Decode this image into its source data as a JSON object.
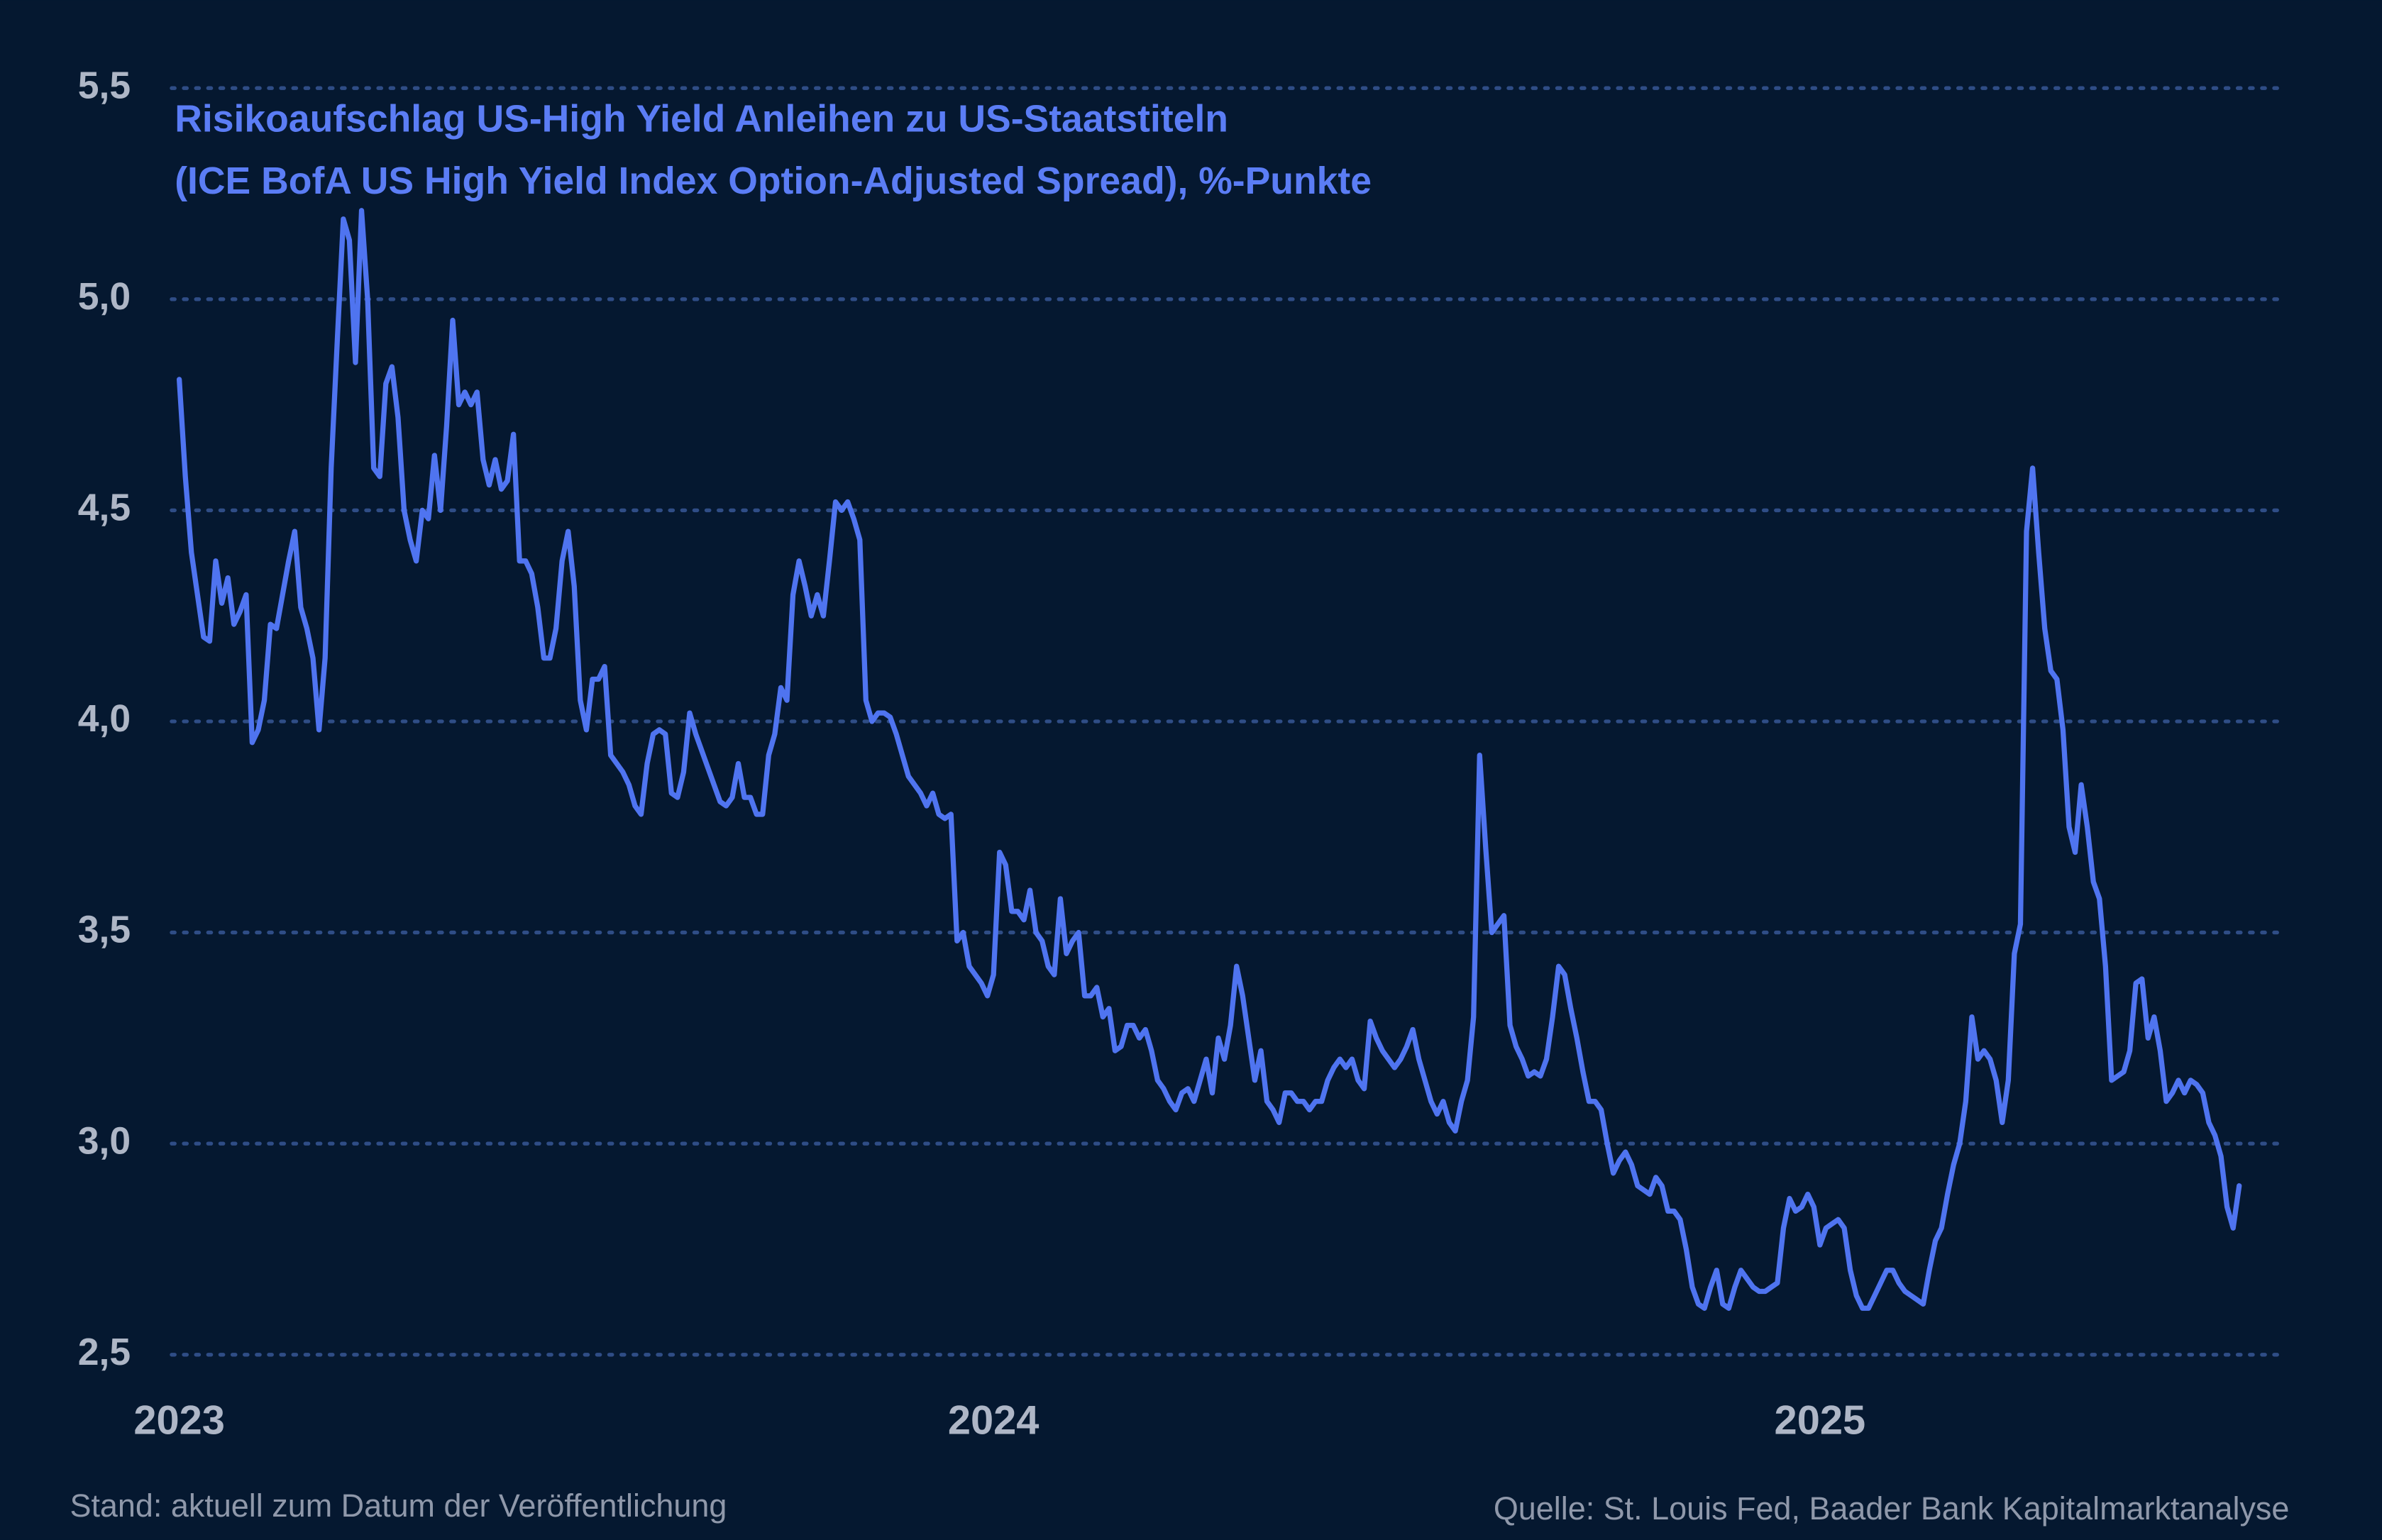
{
  "chart_data": {
    "type": "line",
    "title": "Risikoaufschlag US-High Yield Anleihen zu US-Staatstiteln",
    "subtitle": "(ICE BofA US High Yield Index Option-Adjusted Spread), %-Punkte",
    "note": "Stand: aktuell zum Datum der Veröffentlichung",
    "source": "Quelle: St. Louis Fed, Baader Bank Kapitalmarktanalyse",
    "color": "#4f74f0",
    "grid": true,
    "ylim": [
      2.5,
      5.5
    ],
    "yticks": [
      {
        "value": 2.5,
        "label": "2,5"
      },
      {
        "value": 3.0,
        "label": "3,0"
      },
      {
        "value": 3.5,
        "label": "3,5"
      },
      {
        "value": 4.0,
        "label": "4,0"
      },
      {
        "value": 4.5,
        "label": "4,5"
      },
      {
        "value": 5.0,
        "label": "5,0"
      },
      {
        "value": 5.5,
        "label": "5,5"
      }
    ],
    "categories": [
      "2023",
      null,
      null,
      null,
      null,
      null,
      null,
      null,
      null,
      null,
      null,
      null,
      null,
      null,
      null,
      null,
      null,
      null,
      null,
      null,
      null,
      null,
      null,
      null,
      null,
      null,
      null,
      null,
      null,
      null,
      null,
      null,
      null,
      null,
      null,
      null,
      null,
      null,
      null,
      null,
      null,
      null,
      null,
      null,
      null,
      null,
      null,
      null,
      null,
      null,
      null,
      null,
      null,
      null,
      null,
      null,
      null,
      null,
      null,
      null,
      null,
      null,
      null,
      null,
      null,
      null,
      null,
      null,
      null,
      null,
      null,
      null,
      null,
      null,
      null,
      null,
      null,
      null,
      null,
      null,
      null,
      null,
      null,
      null,
      null,
      null,
      null,
      null,
      null,
      null,
      null,
      null,
      null,
      null,
      null,
      null,
      null,
      null,
      null,
      null,
      null,
      null,
      null,
      null,
      null,
      null,
      null,
      null,
      null,
      null,
      null,
      null,
      null,
      null,
      null,
      null,
      null,
      null,
      null,
      null,
      null,
      null,
      null,
      null,
      null,
      null,
      null,
      null,
      null,
      null,
      null,
      null,
      null,
      null,
      "2024",
      null,
      null,
      null,
      null,
      null,
      null,
      null,
      null,
      null,
      null,
      null,
      null,
      null,
      null,
      null,
      null,
      null,
      null,
      null,
      null,
      null,
      null,
      null,
      null,
      null,
      null,
      null,
      null,
      null,
      null,
      null,
      null,
      null,
      null,
      null,
      null,
      null,
      null,
      null,
      null,
      null,
      null,
      null,
      null,
      null,
      null,
      null,
      null,
      null,
      null,
      null,
      null,
      null,
      null,
      null,
      null,
      null,
      null,
      null,
      null,
      null,
      null,
      null,
      null,
      null,
      null,
      null,
      null,
      null,
      null,
      null,
      null,
      null,
      null,
      null,
      null,
      null,
      null,
      null,
      null,
      null,
      null,
      null,
      null,
      null,
      null,
      null,
      null,
      null,
      null,
      null,
      null,
      null,
      null,
      null,
      null,
      null,
      null,
      null,
      null,
      null,
      null,
      null,
      null,
      null,
      null,
      null,
      null,
      null,
      null,
      null,
      null,
      null,
      null,
      null,
      null,
      null,
      null,
      null,
      null,
      null,
      null,
      null,
      null,
      null,
      null,
      null,
      null,
      null,
      null,
      null,
      null,
      null,
      null,
      null,
      "2025",
      null,
      null,
      null,
      null,
      null,
      null,
      null,
      null,
      null,
      null,
      null,
      null,
      null,
      null,
      null,
      null,
      null,
      null,
      null,
      null,
      null,
      null,
      null,
      null,
      null,
      null,
      null,
      null,
      null,
      null,
      null,
      null,
      null,
      null,
      null,
      null,
      null,
      null,
      null,
      null,
      null,
      null,
      null,
      null,
      null,
      null,
      null,
      null,
      null,
      null,
      null,
      null,
      null,
      null,
      null,
      null,
      null,
      null,
      null,
      null,
      null,
      null,
      null,
      null,
      null,
      null,
      null,
      null,
      null
    ],
    "values": [
      4.81,
      4.58,
      4.4,
      4.3,
      4.2,
      4.19,
      4.38,
      4.28,
      4.34,
      4.23,
      4.26,
      4.3,
      3.95,
      3.98,
      4.05,
      4.23,
      4.22,
      4.3,
      4.38,
      4.45,
      4.27,
      4.22,
      4.15,
      3.98,
      4.15,
      4.6,
      4.9,
      5.19,
      5.14,
      4.85,
      5.21,
      5.0,
      4.6,
      4.58,
      4.8,
      4.84,
      4.72,
      4.5,
      4.43,
      4.38,
      4.5,
      4.48,
      4.63,
      4.5,
      4.7,
      4.95,
      4.75,
      4.78,
      4.75,
      4.78,
      4.62,
      4.56,
      4.62,
      4.55,
      4.57,
      4.68,
      4.38,
      4.38,
      4.35,
      4.27,
      4.15,
      4.15,
      4.22,
      4.38,
      4.45,
      4.32,
      4.05,
      3.98,
      4.1,
      4.1,
      4.13,
      3.92,
      3.9,
      3.88,
      3.85,
      3.8,
      3.78,
      3.9,
      3.97,
      3.98,
      3.97,
      3.83,
      3.82,
      3.88,
      4.02,
      3.97,
      3.93,
      3.89,
      3.85,
      3.81,
      3.8,
      3.82,
      3.9,
      3.82,
      3.82,
      3.78,
      3.78,
      3.92,
      3.97,
      4.08,
      4.05,
      4.3,
      4.38,
      4.32,
      4.25,
      4.3,
      4.25,
      4.38,
      4.52,
      4.5,
      4.52,
      4.48,
      4.43,
      4.05,
      4.0,
      4.02,
      4.02,
      4.01,
      3.97,
      3.92,
      3.87,
      3.85,
      3.83,
      3.8,
      3.83,
      3.78,
      3.77,
      3.78,
      3.48,
      3.5,
      3.42,
      3.4,
      3.38,
      3.35,
      3.4,
      3.69,
      3.66,
      3.55,
      3.55,
      3.53,
      3.6,
      3.5,
      3.48,
      3.42,
      3.4,
      3.58,
      3.45,
      3.48,
      3.5,
      3.35,
      3.35,
      3.37,
      3.3,
      3.32,
      3.22,
      3.23,
      3.28,
      3.28,
      3.25,
      3.27,
      3.22,
      3.15,
      3.13,
      3.1,
      3.08,
      3.12,
      3.13,
      3.1,
      3.15,
      3.2,
      3.12,
      3.25,
      3.2,
      3.28,
      3.42,
      3.35,
      3.25,
      3.15,
      3.22,
      3.1,
      3.08,
      3.05,
      3.12,
      3.12,
      3.1,
      3.1,
      3.08,
      3.1,
      3.1,
      3.15,
      3.18,
      3.2,
      3.18,
      3.2,
      3.15,
      3.13,
      3.29,
      3.25,
      3.22,
      3.2,
      3.18,
      3.2,
      3.23,
      3.27,
      3.2,
      3.15,
      3.1,
      3.07,
      3.1,
      3.05,
      3.03,
      3.1,
      3.15,
      3.3,
      3.92,
      3.7,
      3.5,
      3.52,
      3.54,
      3.28,
      3.23,
      3.2,
      3.16,
      3.17,
      3.16,
      3.2,
      3.3,
      3.42,
      3.4,
      3.32,
      3.25,
      3.17,
      3.1,
      3.1,
      3.08,
      3.0,
      2.93,
      2.96,
      2.98,
      2.95,
      2.9,
      2.89,
      2.88,
      2.92,
      2.9,
      2.84,
      2.84,
      2.82,
      2.75,
      2.66,
      2.62,
      2.61,
      2.66,
      2.7,
      2.62,
      2.61,
      2.66,
      2.7,
      2.68,
      2.66,
      2.65,
      2.65,
      2.66,
      2.67,
      2.8,
      2.87,
      2.84,
      2.85,
      2.88,
      2.85,
      2.76,
      2.8,
      2.81,
      2.82,
      2.8,
      2.7,
      2.64,
      2.61,
      2.61,
      2.64,
      2.67,
      2.7,
      2.7,
      2.67,
      2.65,
      2.64,
      2.63,
      2.62,
      2.7,
      2.77,
      2.8,
      2.88,
      2.95,
      3.0,
      3.1,
      3.3,
      3.2,
      3.22,
      3.2,
      3.15,
      3.05,
      3.15,
      3.45,
      3.52,
      4.45,
      4.6,
      4.4,
      4.22,
      4.12,
      4.1,
      3.98,
      3.75,
      3.69,
      3.85,
      3.75,
      3.62,
      3.58,
      3.42,
      3.15,
      3.16,
      3.17,
      3.22,
      3.38,
      3.39,
      3.25,
      3.3,
      3.22,
      3.1,
      3.12,
      3.15,
      3.12,
      3.15,
      3.14,
      3.12,
      3.05,
      3.02,
      2.97,
      2.85,
      2.8,
      2.9
    ]
  }
}
